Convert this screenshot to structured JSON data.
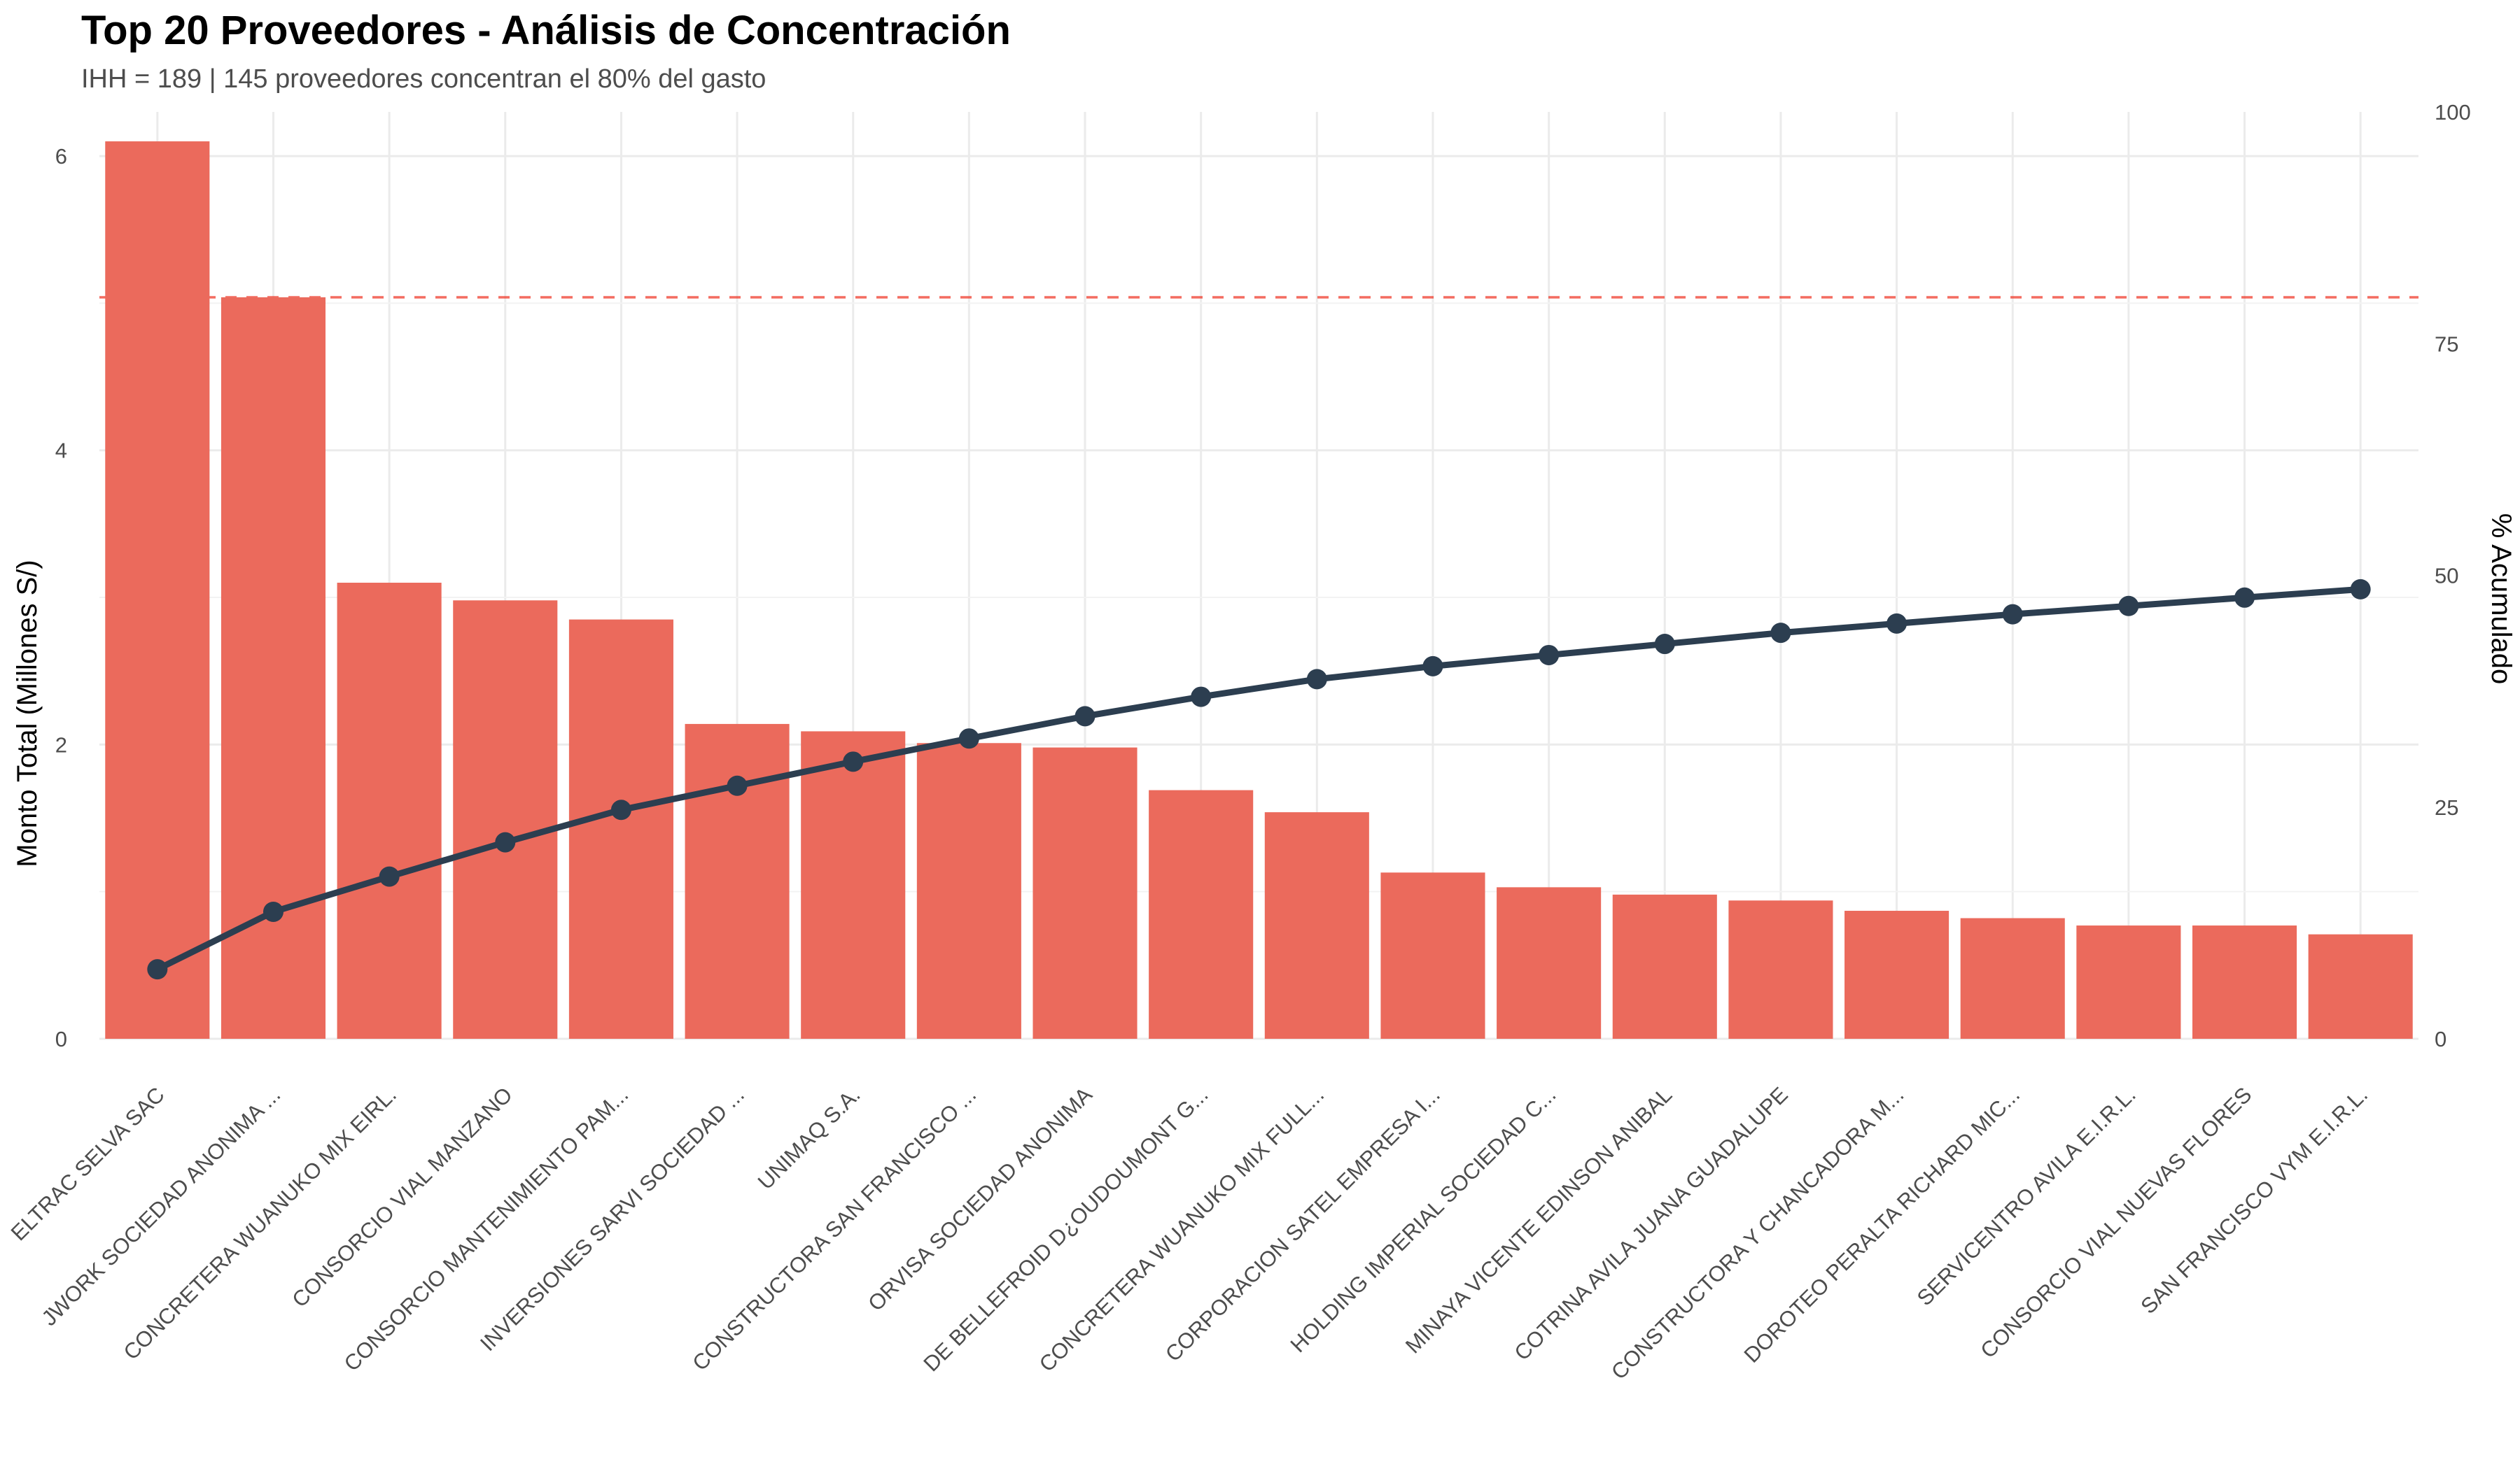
{
  "chart_data": {
    "type": "bar",
    "title": "Top 20 Proveedores - Análisis de Concentración",
    "subtitle": "IHH = 189 | 145 proveedores concentran el 80% del gasto",
    "ylabel": "Monto Total (Millones S/)",
    "y2label": "% Acumulado",
    "ylim": [
      0,
      6.3
    ],
    "y2lim": [
      0,
      100
    ],
    "yticks": [
      "0",
      "2",
      "4",
      "6"
    ],
    "y2ticks": [
      "0",
      "25",
      "50",
      "75",
      "100"
    ],
    "reference_line": {
      "axis": "y2",
      "value": 80,
      "style": "dashed",
      "color": "#ef3b2c"
    },
    "grid": true,
    "categories": [
      "ELTRAC SELVA SAC",
      "JWORK SOCIEDAD ANONIMA ...",
      "CONCRETERA WUANUKO MIX EIRL.",
      "CONSORCIO VIAL MANZANO",
      "CONSORCIO MANTENIMIENTO PAM...",
      "INVERSIONES SARVI SOCIEDAD ...",
      "UNIMAQ S.A.",
      "CONSTRUCTORA SAN FRANCISCO ...",
      "ORVISA SOCIEDAD ANONIMA",
      "DE BELLEFROID D¿OUDOUMONT G...",
      "CONCRETERA WUANUKO MIX FULL...",
      "CORPORACION SATEL EMPRESA I...",
      "HOLDING IMPERIAL SOCIEDAD C...",
      "MINAYA VICENTE EDINSON ANIBAL",
      "COTRINA AVILA JUANA GUADALUPE",
      "CONSTRUCTORA Y CHANCADORA M...",
      "DOROTEO PERALTA RICHARD MIC...",
      "SERVICENTRO AVILA E.I.R.L.",
      "CONSORCIO VIAL NUEVAS FLORES",
      "SAN FRANCISCO VYM E.I.R.L."
    ],
    "series": [
      {
        "name": "Monto Total (Millones S/)",
        "type": "bar",
        "axis": "y",
        "color": "#eb6a5c",
        "values": [
          6.1,
          5.04,
          3.1,
          2.98,
          2.85,
          2.14,
          2.09,
          2.01,
          1.98,
          1.69,
          1.54,
          1.13,
          1.03,
          0.98,
          0.94,
          0.87,
          0.82,
          0.77,
          0.77,
          0.71
        ]
      },
      {
        "name": "% Acumulado",
        "type": "line",
        "axis": "y2",
        "color": "#2c3e50",
        "values": [
          7.5,
          13.7,
          17.5,
          21.2,
          24.7,
          27.3,
          29.9,
          32.4,
          34.8,
          36.9,
          38.8,
          40.2,
          41.4,
          42.6,
          43.8,
          44.8,
          45.8,
          46.7,
          47.6,
          48.5
        ]
      }
    ]
  }
}
